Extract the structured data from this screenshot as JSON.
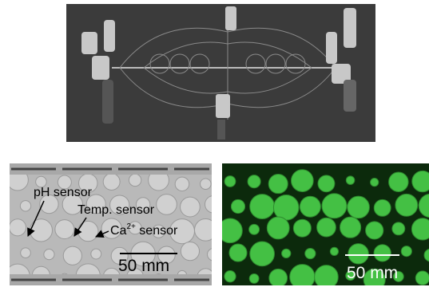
{
  "panels": {
    "bright_field": {
      "labels": [
        "pH sensor",
        "Temp. sensor"
      ],
      "ca_label": {
        "base": "Ca",
        "sup": "2+",
        "rest": " sensor"
      },
      "scale_bar": "50 mm"
    },
    "fluorescence": {
      "scale_bar": "50 mm"
    }
  }
}
